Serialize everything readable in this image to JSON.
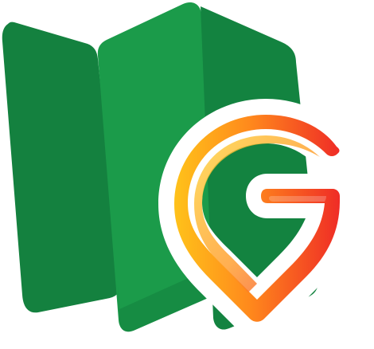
{
  "logo": {
    "icons": {
      "map": "folded-map-icon",
      "pin": "g-location-pin-icon"
    },
    "colors": {
      "map_left_panel": "#14813f",
      "map_middle_panel": "#1b9b4a",
      "map_right_panel": "#138340",
      "map_shadow": "#0f6f36",
      "pin_yellow": "#ffc21a",
      "pin_orange": "#ff8a1c",
      "pin_red": "#ef2c26",
      "pin_outline": "#ffffff"
    }
  }
}
